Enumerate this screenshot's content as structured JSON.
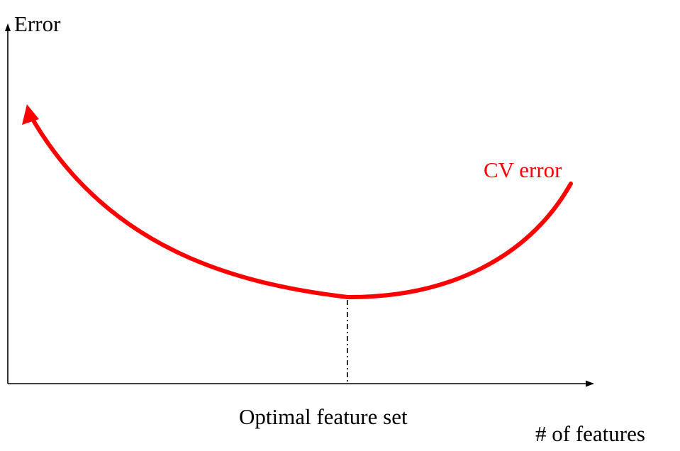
{
  "diagram": {
    "y_axis_label": "Error",
    "x_axis_label": "# of features",
    "curve_label": "CV error",
    "optimal_label": "Optimal feature set",
    "curve_color": "#ff0000",
    "axis_color": "#000000"
  }
}
